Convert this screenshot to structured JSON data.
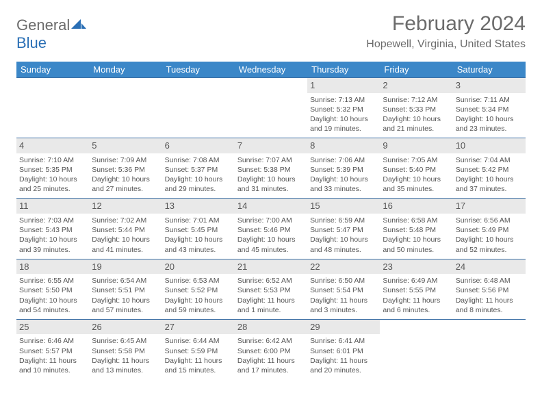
{
  "logo": {
    "part1": "General",
    "part2": "Blue"
  },
  "title": "February 2024",
  "location": "Hopewell, Virginia, United States",
  "colors": {
    "header_bg": "#3b87c8",
    "header_text": "#ffffff",
    "row_border": "#3b6fa5",
    "daynum_bg": "#e9e9e9",
    "text": "#555555",
    "logo_blue": "#2a6fb5"
  },
  "weekdays": [
    "Sunday",
    "Monday",
    "Tuesday",
    "Wednesday",
    "Thursday",
    "Friday",
    "Saturday"
  ],
  "weeks": [
    [
      {
        "blank": true
      },
      {
        "blank": true
      },
      {
        "blank": true
      },
      {
        "blank": true
      },
      {
        "n": "1",
        "sr": "7:13 AM",
        "ss": "5:32 PM",
        "dl": "10 hours and 19 minutes."
      },
      {
        "n": "2",
        "sr": "7:12 AM",
        "ss": "5:33 PM",
        "dl": "10 hours and 21 minutes."
      },
      {
        "n": "3",
        "sr": "7:11 AM",
        "ss": "5:34 PM",
        "dl": "10 hours and 23 minutes."
      }
    ],
    [
      {
        "n": "4",
        "sr": "7:10 AM",
        "ss": "5:35 PM",
        "dl": "10 hours and 25 minutes."
      },
      {
        "n": "5",
        "sr": "7:09 AM",
        "ss": "5:36 PM",
        "dl": "10 hours and 27 minutes."
      },
      {
        "n": "6",
        "sr": "7:08 AM",
        "ss": "5:37 PM",
        "dl": "10 hours and 29 minutes."
      },
      {
        "n": "7",
        "sr": "7:07 AM",
        "ss": "5:38 PM",
        "dl": "10 hours and 31 minutes."
      },
      {
        "n": "8",
        "sr": "7:06 AM",
        "ss": "5:39 PM",
        "dl": "10 hours and 33 minutes."
      },
      {
        "n": "9",
        "sr": "7:05 AM",
        "ss": "5:40 PM",
        "dl": "10 hours and 35 minutes."
      },
      {
        "n": "10",
        "sr": "7:04 AM",
        "ss": "5:42 PM",
        "dl": "10 hours and 37 minutes."
      }
    ],
    [
      {
        "n": "11",
        "sr": "7:03 AM",
        "ss": "5:43 PM",
        "dl": "10 hours and 39 minutes."
      },
      {
        "n": "12",
        "sr": "7:02 AM",
        "ss": "5:44 PM",
        "dl": "10 hours and 41 minutes."
      },
      {
        "n": "13",
        "sr": "7:01 AM",
        "ss": "5:45 PM",
        "dl": "10 hours and 43 minutes."
      },
      {
        "n": "14",
        "sr": "7:00 AM",
        "ss": "5:46 PM",
        "dl": "10 hours and 45 minutes."
      },
      {
        "n": "15",
        "sr": "6:59 AM",
        "ss": "5:47 PM",
        "dl": "10 hours and 48 minutes."
      },
      {
        "n": "16",
        "sr": "6:58 AM",
        "ss": "5:48 PM",
        "dl": "10 hours and 50 minutes."
      },
      {
        "n": "17",
        "sr": "6:56 AM",
        "ss": "5:49 PM",
        "dl": "10 hours and 52 minutes."
      }
    ],
    [
      {
        "n": "18",
        "sr": "6:55 AM",
        "ss": "5:50 PM",
        "dl": "10 hours and 54 minutes."
      },
      {
        "n": "19",
        "sr": "6:54 AM",
        "ss": "5:51 PM",
        "dl": "10 hours and 57 minutes."
      },
      {
        "n": "20",
        "sr": "6:53 AM",
        "ss": "5:52 PM",
        "dl": "10 hours and 59 minutes."
      },
      {
        "n": "21",
        "sr": "6:52 AM",
        "ss": "5:53 PM",
        "dl": "11 hours and 1 minute."
      },
      {
        "n": "22",
        "sr": "6:50 AM",
        "ss": "5:54 PM",
        "dl": "11 hours and 3 minutes."
      },
      {
        "n": "23",
        "sr": "6:49 AM",
        "ss": "5:55 PM",
        "dl": "11 hours and 6 minutes."
      },
      {
        "n": "24",
        "sr": "6:48 AM",
        "ss": "5:56 PM",
        "dl": "11 hours and 8 minutes."
      }
    ],
    [
      {
        "n": "25",
        "sr": "6:46 AM",
        "ss": "5:57 PM",
        "dl": "11 hours and 10 minutes."
      },
      {
        "n": "26",
        "sr": "6:45 AM",
        "ss": "5:58 PM",
        "dl": "11 hours and 13 minutes."
      },
      {
        "n": "27",
        "sr": "6:44 AM",
        "ss": "5:59 PM",
        "dl": "11 hours and 15 minutes."
      },
      {
        "n": "28",
        "sr": "6:42 AM",
        "ss": "6:00 PM",
        "dl": "11 hours and 17 minutes."
      },
      {
        "n": "29",
        "sr": "6:41 AM",
        "ss": "6:01 PM",
        "dl": "11 hours and 20 minutes."
      },
      {
        "blank": true
      },
      {
        "blank": true
      }
    ]
  ],
  "labels": {
    "sunrise": "Sunrise: ",
    "sunset": "Sunset: ",
    "daylight": "Daylight: "
  }
}
